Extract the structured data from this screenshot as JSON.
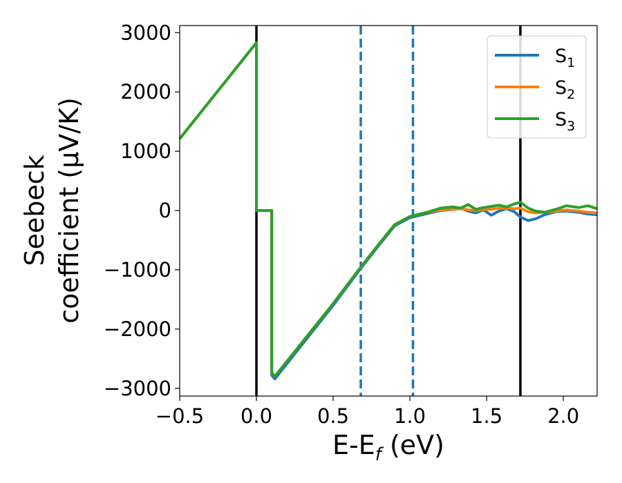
{
  "chart_data": {
    "type": "line",
    "xlabel": "E-E_f (eV)",
    "xlabel_parts": {
      "main": "E-E",
      "sub": "f",
      "unit": " (eV)"
    },
    "ylabel_lines": [
      "Seebeck",
      "coefficient  (μV/K)"
    ],
    "xlim": [
      -0.5,
      2.22
    ],
    "ylim": [
      -3130,
      3120
    ],
    "xticks": [
      -0.5,
      0.0,
      0.5,
      1.0,
      1.5,
      2.0
    ],
    "xtick_labels": [
      "−0.5",
      "0.0",
      "0.5",
      "1.0",
      "1.5",
      "2.0"
    ],
    "yticks": [
      -3000,
      -2000,
      -1000,
      0,
      1000,
      2000,
      3000
    ],
    "ytick_labels": [
      "−3000",
      "−2000",
      "−1000",
      "0",
      "1000",
      "2000",
      "3000"
    ],
    "grid": false,
    "legend_position": "top-right",
    "series": [
      {
        "name": "S₁",
        "label_main": "S",
        "label_sub": "1",
        "color": "#1f77b4",
        "x": [
          -0.5,
          0.0,
          0.0,
          0.1,
          0.1,
          0.12,
          0.5,
          0.67,
          0.8,
          0.9,
          1.0,
          1.1,
          1.2,
          1.28,
          1.33,
          1.38,
          1.43,
          1.48,
          1.53,
          1.58,
          1.63,
          1.68,
          1.72,
          1.77,
          1.82,
          1.88,
          1.95,
          2.02,
          2.1,
          2.16,
          2.22
        ],
        "y": [
          1210,
          2830,
          0,
          0,
          -2780,
          -2840,
          -1600,
          -1010,
          -580,
          -260,
          -120,
          -60,
          0,
          20,
          40,
          -10,
          -40,
          10,
          -80,
          -10,
          30,
          -20,
          -110,
          -170,
          -140,
          -70,
          -20,
          -10,
          -30,
          -60,
          -70
        ]
      },
      {
        "name": "S₂",
        "label_main": "S",
        "label_sub": "2",
        "color": "#ff7f0e",
        "x": [
          -0.5,
          0.0,
          0.0,
          0.1,
          0.1,
          0.12,
          0.5,
          0.67,
          0.8,
          0.9,
          1.0,
          1.1,
          1.2,
          1.28,
          1.33,
          1.38,
          1.43,
          1.48,
          1.53,
          1.58,
          1.63,
          1.68,
          1.72,
          1.77,
          1.82,
          1.88,
          1.95,
          2.02,
          2.1,
          2.16,
          2.22
        ],
        "y": [
          1210,
          2830,
          0,
          0,
          -2740,
          -2800,
          -1570,
          -990,
          -560,
          -240,
          -100,
          -40,
          10,
          20,
          30,
          10,
          0,
          20,
          20,
          40,
          40,
          30,
          40,
          -20,
          -40,
          -30,
          -10,
          10,
          -10,
          -30,
          -40
        ]
      },
      {
        "name": "S₃",
        "label_main": "S",
        "label_sub": "3",
        "color": "#2ca02c",
        "x": [
          -0.5,
          0.0,
          0.0,
          0.1,
          0.1,
          0.12,
          0.5,
          0.67,
          0.8,
          0.9,
          1.0,
          1.1,
          1.2,
          1.28,
          1.33,
          1.38,
          1.43,
          1.48,
          1.53,
          1.58,
          1.63,
          1.68,
          1.72,
          1.77,
          1.82,
          1.88,
          1.95,
          2.02,
          2.1,
          2.16,
          2.22
        ],
        "y": [
          1210,
          2830,
          0,
          0,
          -2740,
          -2800,
          -1570,
          -990,
          -560,
          -240,
          -100,
          -40,
          40,
          60,
          40,
          100,
          20,
          50,
          70,
          90,
          60,
          110,
          140,
          40,
          -10,
          -30,
          20,
          80,
          50,
          80,
          30
        ]
      }
    ],
    "vertical_lines": [
      {
        "x": 0.0,
        "style": "solid",
        "color": "#000000"
      },
      {
        "x": 1.72,
        "style": "solid",
        "color": "#000000"
      },
      {
        "x": 0.68,
        "style": "dashed",
        "color": "#1f77b4"
      },
      {
        "x": 1.02,
        "style": "dashed",
        "color": "#1f77b4"
      }
    ]
  }
}
